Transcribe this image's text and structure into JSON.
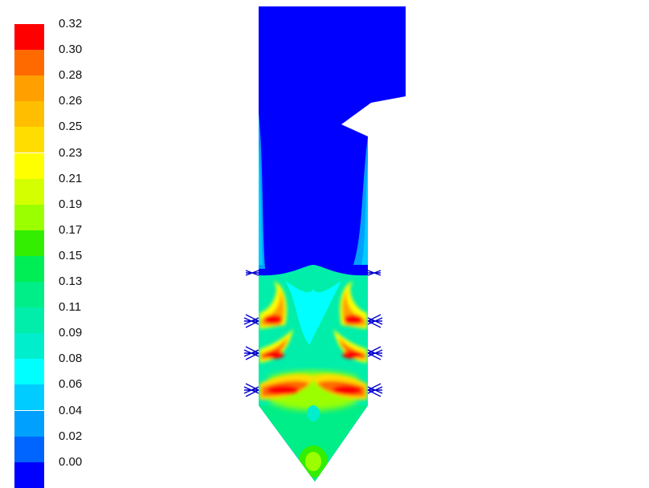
{
  "chart_data": {
    "type": "heatmap",
    "title": "",
    "xlabel": "",
    "ylabel": "",
    "legend_position": "left",
    "legend_labels": [
      "0.32",
      "0.30",
      "0.28",
      "0.26",
      "0.25",
      "0.23",
      "0.21",
      "0.19",
      "0.17",
      "0.15",
      "0.13",
      "0.11",
      "0.09",
      "0.08",
      "0.06",
      "0.04",
      "0.02",
      "0.00"
    ],
    "legend_colors": [
      "#ff0000",
      "#ff6a00",
      "#ff9f00",
      "#ffbf00",
      "#ffdd00",
      "#ffff00",
      "#d4ff00",
      "#9bff00",
      "#33ee00",
      "#00ee55",
      "#00ee88",
      "#00eeaa",
      "#00eecc",
      "#00ffff",
      "#00ccff",
      "#00a0ff",
      "#0064ff",
      "#0000ff"
    ],
    "value_range": [
      0.0,
      0.32
    ],
    "field_description": "contour field of a furnace cross-section; high values at burner jets on three levels, near zero in upper region"
  }
}
